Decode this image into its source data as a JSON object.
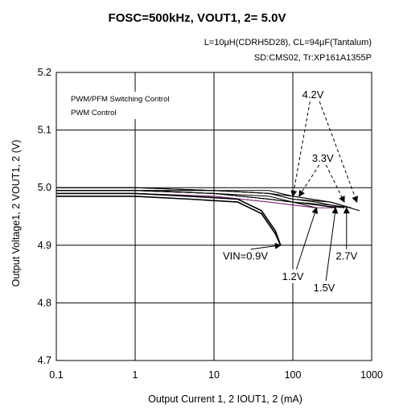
{
  "chart_data": {
    "type": "line",
    "title": "FOSC=500kHz, VOUT1, 2= 5.0V",
    "conditions": [
      "L=10μH(CDRH5D28), CL=94μF(Tantalum)",
      "SD:CMS02, Tr:XP161A1355P"
    ],
    "xlabel": "Output Current 1, 2 IOUT1, 2 (mA)",
    "ylabel": "Output Voltage1, 2 VOUT1, 2 (V)",
    "xscale": "log",
    "xlim": [
      0.1,
      1000
    ],
    "ylim": [
      4.7,
      5.2
    ],
    "x_ticks": [
      0.1,
      1,
      10,
      100,
      1000
    ],
    "x_tick_labels": [
      "0.1",
      "1",
      "10",
      "100",
      "1000"
    ],
    "y_ticks": [
      4.7,
      4.8,
      4.9,
      5.0,
      5.1,
      5.2
    ],
    "y_tick_labels": [
      "4.7",
      "4.8",
      "4.9",
      "5.0",
      "5.1",
      "5.2"
    ],
    "grid": true,
    "legend_box": [
      "PWM/PFM Switching Control",
      "PWM  Control"
    ],
    "legend_placement": "top-left",
    "series": [
      {
        "name": "VIN=0.9V",
        "control": "PWM/PFM",
        "x": [
          0.1,
          1,
          5,
          20,
          40,
          60,
          70
        ],
        "y": [
          4.985,
          4.985,
          4.98,
          4.975,
          4.955,
          4.92,
          4.9
        ]
      },
      {
        "name": "1.2V",
        "control": "PWM/PFM",
        "x": [
          0.1,
          1,
          10,
          50,
          100,
          200
        ],
        "y": [
          4.99,
          4.99,
          4.985,
          4.975,
          4.97,
          4.965
        ]
      },
      {
        "name": "1.5V",
        "control": "PWM/PFM",
        "x": [
          0.1,
          1,
          10,
          50,
          100,
          200,
          350
        ],
        "y": [
          4.99,
          4.99,
          4.985,
          4.975,
          4.97,
          4.965,
          4.965
        ]
      },
      {
        "name": "2.7V",
        "control": "PWM/PFM",
        "x": [
          0.1,
          1,
          10,
          50,
          100,
          200,
          450
        ],
        "y": [
          4.995,
          4.995,
          4.99,
          4.98,
          4.975,
          4.97,
          4.965
        ]
      },
      {
        "name": "3.3V",
        "control": "PWM/PFM",
        "x": [
          0.1,
          1,
          10,
          50,
          100,
          300,
          550
        ],
        "y": [
          4.995,
          4.995,
          4.99,
          4.985,
          4.975,
          4.97,
          4.965
        ]
      },
      {
        "name": "4.2V",
        "control": "PWM/PFM",
        "x": [
          0.1,
          1,
          10,
          50,
          100,
          300,
          700
        ],
        "y": [
          4.995,
          4.995,
          4.995,
          4.99,
          4.98,
          4.975,
          4.96
        ]
      },
      {
        "name": "0.9V",
        "control": "PWM",
        "x": [
          0.1,
          1,
          5,
          20,
          40,
          60,
          70
        ],
        "y": [
          4.99,
          4.99,
          4.985,
          4.98,
          4.96,
          4.925,
          4.9
        ]
      },
      {
        "name": "1.2V",
        "control": "PWM",
        "x": [
          0.1,
          1,
          10,
          50,
          100,
          200
        ],
        "y": [
          4.995,
          4.995,
          4.99,
          4.98,
          4.975,
          4.965
        ]
      },
      {
        "name": "1.5V",
        "control": "PWM",
        "x": [
          0.1,
          1,
          10,
          50,
          100,
          200,
          350
        ],
        "y": [
          4.995,
          4.995,
          4.99,
          4.98,
          4.975,
          4.97,
          4.965
        ]
      },
      {
        "name": "2.7V",
        "control": "PWM",
        "x": [
          0.1,
          1,
          10,
          50,
          100,
          200,
          450
        ],
        "y": [
          4.995,
          4.995,
          4.995,
          4.99,
          4.98,
          4.975,
          4.965
        ]
      },
      {
        "name": "3.3V",
        "control": "PWM",
        "x": [
          0.1,
          1,
          10,
          50,
          100,
          300,
          550
        ],
        "y": [
          5.0,
          5.0,
          4.995,
          4.99,
          4.985,
          4.975,
          4.965
        ]
      },
      {
        "name": "4.2V",
        "control": "PWM",
        "x": [
          0.1,
          1,
          10,
          50,
          100,
          300,
          700
        ],
        "y": [
          5.0,
          5.0,
          4.995,
          4.995,
          4.985,
          4.975,
          4.96
        ]
      }
    ],
    "annotations": [
      {
        "text": "4.2V",
        "x": 180,
        "y": 5.155,
        "arrow_to": [
          [
            100,
            4.985
          ],
          [
            650,
            4.975
          ]
        ],
        "dashed": true
      },
      {
        "text": "3.3V",
        "x": 240,
        "y": 5.045,
        "arrow_to": [
          [
            120,
            4.985
          ],
          [
            450,
            4.975
          ]
        ],
        "dashed": true
      },
      {
        "text": "VIN=0.9V",
        "x": 25,
        "y": 4.875,
        "arrow_to": [
          [
            70,
            4.9
          ]
        ]
      },
      {
        "text": "1.2V",
        "x": 100,
        "y": 4.84,
        "arrow_to": [
          [
            200,
            4.965
          ]
        ]
      },
      {
        "text": "1.5V",
        "x": 250,
        "y": 4.82,
        "arrow_to": [
          [
            350,
            4.965
          ]
        ]
      },
      {
        "text": "2.7V",
        "x": 480,
        "y": 4.875,
        "arrow_to": [
          [
            480,
            4.965
          ]
        ]
      }
    ],
    "colors": {
      "line": "#000000",
      "highlight": "#7a2a7a",
      "grid": "#000000"
    }
  }
}
